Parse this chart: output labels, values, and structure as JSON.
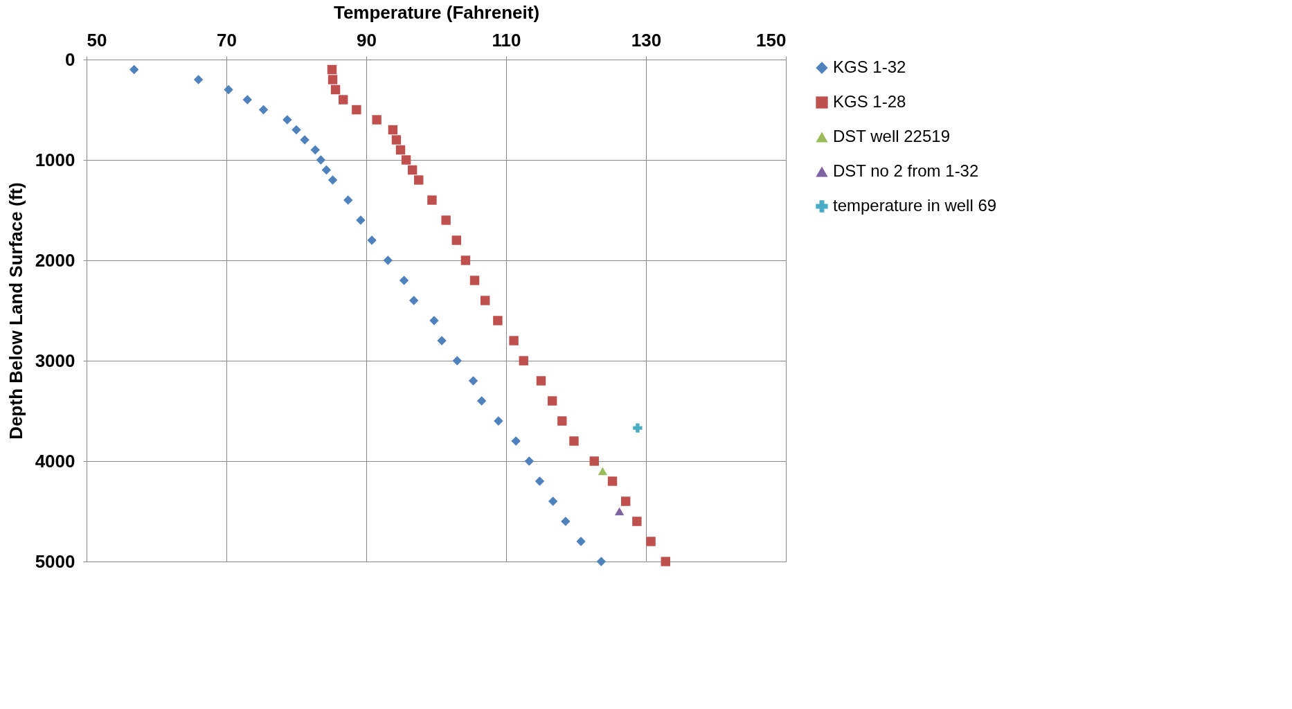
{
  "chart_data": {
    "type": "scatter",
    "xlabel": "Temperature (Fahreneit)",
    "ylabel": "Depth Below Land Surface (ft)",
    "xlim": [
      50,
      150
    ],
    "xticks": [
      50,
      70,
      90,
      110,
      130,
      150
    ],
    "ylim": [
      5000,
      0
    ],
    "yticks": [
      0,
      1000,
      2000,
      3000,
      4000,
      5000
    ],
    "grid": true,
    "legend": "right",
    "series": [
      {
        "name": "KGS 1-32",
        "color": "#4f81bd",
        "marker": "diamond",
        "x": [
          56.8,
          66.0,
          70.3,
          73.0,
          75.3,
          78.7,
          80.0,
          81.2,
          82.7,
          83.5,
          84.3,
          85.2,
          87.4,
          89.2,
          90.8,
          93.1,
          95.4,
          96.8,
          99.7,
          100.8,
          103.0,
          105.3,
          106.5,
          108.9,
          111.4,
          113.3,
          114.8,
          116.7,
          118.5,
          120.7,
          123.6
        ],
        "values": [
          100,
          200,
          300,
          400,
          500,
          600,
          700,
          800,
          900,
          1000,
          1100,
          1200,
          1400,
          1600,
          1800,
          2000,
          2200,
          2400,
          2600,
          2800,
          3000,
          3200,
          3400,
          3600,
          3800,
          4000,
          4200,
          4400,
          4600,
          4800,
          5000
        ]
      },
      {
        "name": "KGS 1-28",
        "color": "#c0504d",
        "marker": "square",
        "x": [
          85.1,
          85.2,
          85.6,
          86.7,
          88.6,
          91.5,
          93.8,
          94.3,
          94.9,
          95.7,
          96.6,
          97.5,
          99.4,
          101.4,
          102.9,
          104.2,
          105.5,
          107.0,
          108.8,
          111.1,
          112.5,
          115.0,
          116.6,
          118.0,
          119.7,
          122.6,
          125.2,
          127.1,
          128.7,
          130.7,
          132.8
        ],
        "values": [
          100,
          200,
          300,
          400,
          500,
          600,
          700,
          800,
          900,
          1000,
          1100,
          1200,
          1400,
          1600,
          1800,
          2000,
          2200,
          2400,
          2600,
          2800,
          3000,
          3200,
          3400,
          3600,
          3800,
          4000,
          4200,
          4400,
          4600,
          4800,
          5000
        ]
      },
      {
        "name": "DST well 22519",
        "color": "#9bbb59",
        "marker": "triangle",
        "x": [
          123.8
        ],
        "values": [
          4100
        ]
      },
      {
        "name": "DST no 2 from 1-32",
        "color": "#8064a2",
        "marker": "triangle",
        "x": [
          126.2
        ],
        "values": [
          4500
        ]
      },
      {
        "name": "temperature in well 69",
        "color": "#4bacc6",
        "marker": "cross",
        "x": [
          128.8
        ],
        "values": [
          3670
        ]
      }
    ]
  }
}
